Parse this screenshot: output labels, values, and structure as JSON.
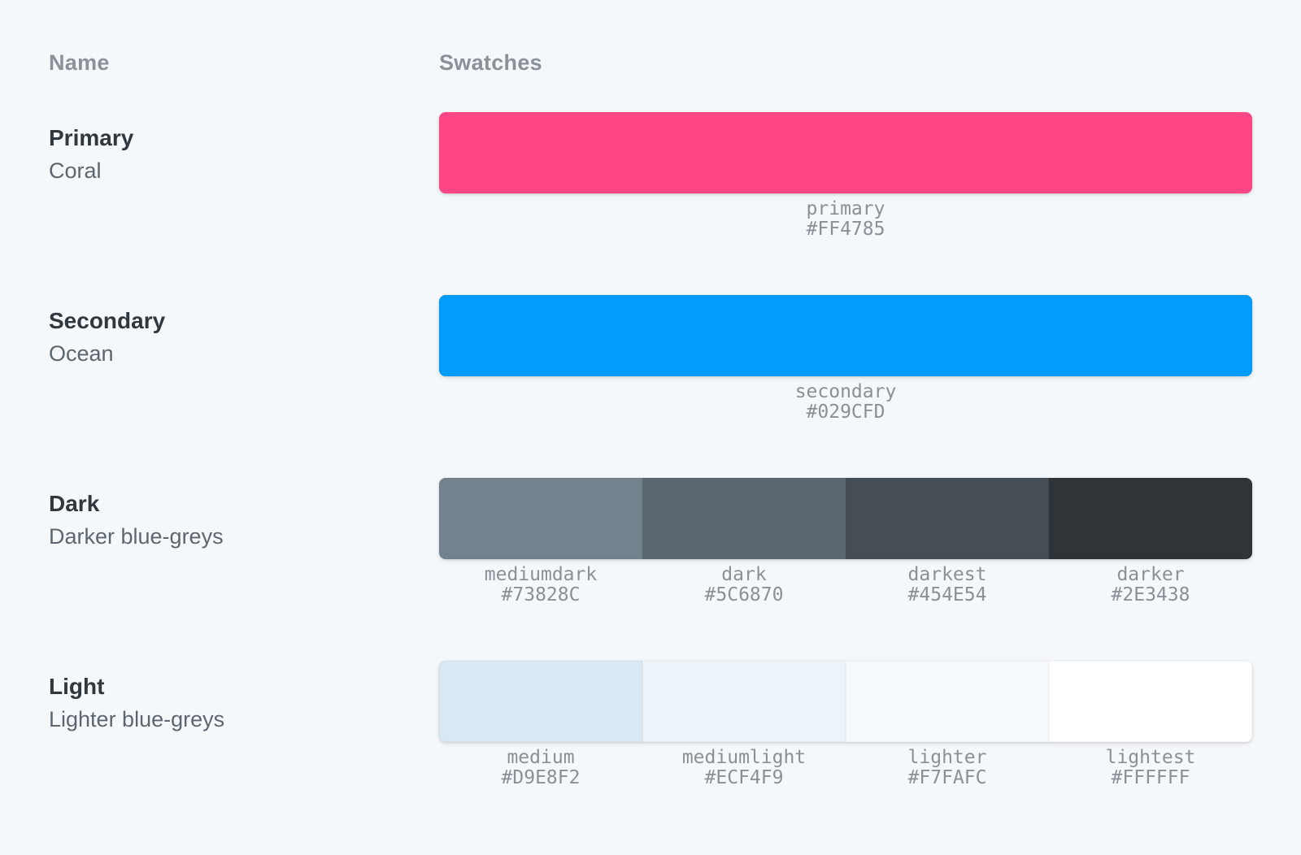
{
  "page": {
    "background": "#F5F8FB"
  },
  "table": {
    "header": {
      "name": "Name",
      "swatches": "Swatches"
    },
    "rows": [
      {
        "title": "Primary",
        "subtitle": "Coral",
        "swatches": [
          {
            "name": "primary",
            "value": "#FF4785"
          }
        ]
      },
      {
        "title": "Secondary",
        "subtitle": "Ocean",
        "swatches": [
          {
            "name": "secondary",
            "value": "#029CFD"
          }
        ]
      },
      {
        "title": "Dark",
        "subtitle": "Darker blue-greys",
        "swatches": [
          {
            "name": "mediumdark",
            "value": "#73828C"
          },
          {
            "name": "dark",
            "value": "#5C6870"
          },
          {
            "name": "darkest",
            "value": "#454E54"
          },
          {
            "name": "darker",
            "value": "#2E3438"
          }
        ]
      },
      {
        "title": "Light",
        "subtitle": "Lighter blue-greys",
        "swatches": [
          {
            "name": "medium",
            "value": "#D9E8F2"
          },
          {
            "name": "mediumlight",
            "value": "#ECF4F9"
          },
          {
            "name": "lighter",
            "value": "#F7FAFC"
          },
          {
            "name": "lightest",
            "value": "#FFFFFF"
          }
        ]
      }
    ]
  }
}
